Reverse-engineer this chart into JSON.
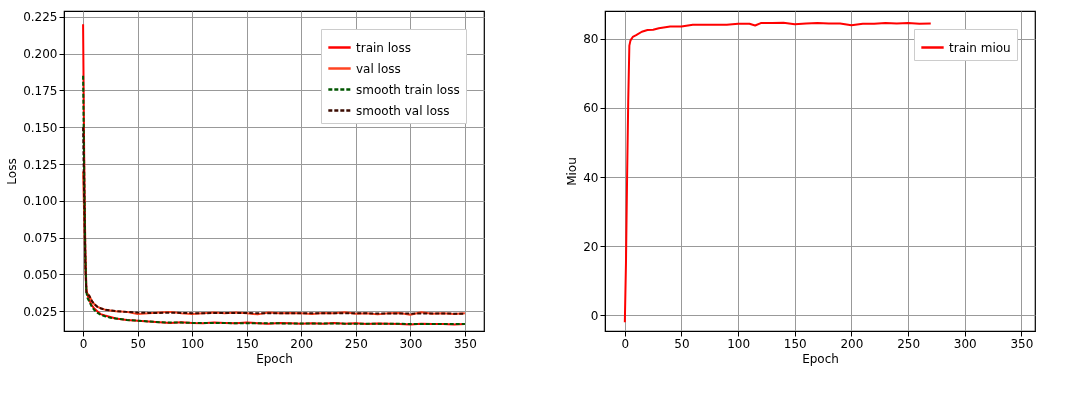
{
  "chart_data": [
    {
      "type": "line",
      "xlabel": "Epoch",
      "ylabel": "Loss",
      "grid": true,
      "legend": "top right",
      "xlim": [
        -17.5,
        367.5
      ],
      "xticks": [
        0,
        50,
        100,
        150,
        200,
        250,
        300,
        350
      ],
      "ylim": [
        0.0115,
        0.229
      ],
      "yticks": [
        0.025,
        {
          "value": 0.05,
          "label": "0.050"
        },
        0.075,
        {
          "value": 0.1,
          "label": "0.100"
        },
        0.125,
        {
          "value": 0.15,
          "label": "0.150"
        },
        0.175,
        {
          "value": 0.2,
          "label": "0.200"
        },
        0.225
      ],
      "x": [
        0,
        1,
        2,
        3,
        4,
        6,
        8,
        10,
        13,
        16,
        20,
        25,
        30,
        40,
        50,
        60,
        70,
        80,
        90,
        100,
        110,
        120,
        130,
        140,
        150,
        160,
        170,
        180,
        190,
        200,
        210,
        220,
        230,
        240,
        250,
        260,
        270,
        280,
        290,
        300,
        310,
        320,
        330,
        340,
        350
      ],
      "series": [
        {
          "name": "train loss",
          "color": "#ff0000",
          "line_style": "solid",
          "values": [
            0.22,
            0.13,
            0.07,
            0.04,
            0.036,
            0.032,
            0.029,
            0.027,
            0.025,
            0.023,
            0.022,
            0.021,
            0.02,
            0.019,
            0.0185,
            0.018,
            0.0175,
            0.017,
            0.0175,
            0.017,
            0.0168,
            0.0172,
            0.017,
            0.0168,
            0.0172,
            0.0168,
            0.0165,
            0.017,
            0.0168,
            0.0165,
            0.0168,
            0.0165,
            0.017,
            0.0165,
            0.0167,
            0.0163,
            0.0166,
            0.0165,
            0.0163,
            0.016,
            0.0165,
            0.0162,
            0.0163,
            0.016,
            0.0162
          ]
        },
        {
          "name": "val loss",
          "color": "#ff4422",
          "line_style": "solid",
          "values": [
            0.12,
            0.09,
            0.055,
            0.038,
            0.037,
            0.035,
            0.032,
            0.03,
            0.028,
            0.027,
            0.026,
            0.0255,
            0.025,
            0.0245,
            0.023,
            0.0235,
            0.024,
            0.0245,
            0.0235,
            0.023,
            0.0235,
            0.024,
            0.0235,
            0.024,
            0.0235,
            0.0228,
            0.024,
            0.0235,
            0.0238,
            0.0235,
            0.023,
            0.0238,
            0.0235,
            0.0242,
            0.0232,
            0.0235,
            0.0228,
            0.0235,
            0.0238,
            0.0225,
            0.0242,
            0.0232,
            0.0235,
            0.023,
            0.0235
          ]
        },
        {
          "name": "smooth train loss",
          "color": "#005500",
          "line_style": "dashed",
          "values": [
            0.185,
            0.12,
            0.065,
            0.038,
            0.034,
            0.031,
            0.028,
            0.026,
            0.024,
            0.0225,
            0.0215,
            0.0205,
            0.02,
            0.019,
            0.0185,
            0.018,
            0.0175,
            0.0172,
            0.0172,
            0.017,
            0.0169,
            0.0169,
            0.0169,
            0.0168,
            0.0168,
            0.0167,
            0.0167,
            0.0167,
            0.0166,
            0.0166,
            0.0166,
            0.0166,
            0.0166,
            0.0165,
            0.0165,
            0.0165,
            0.0165,
            0.0164,
            0.0164,
            0.0163,
            0.0163,
            0.0163,
            0.0162,
            0.0162,
            0.0162
          ]
        },
        {
          "name": "smooth val loss",
          "color": "#3a0a00",
          "line_style": "dashed",
          "values": [
            0.15,
            0.1,
            0.058,
            0.038,
            0.037,
            0.035,
            0.032,
            0.03,
            0.028,
            0.027,
            0.026,
            0.0255,
            0.025,
            0.0245,
            0.024,
            0.0238,
            0.0238,
            0.024,
            0.0238,
            0.0236,
            0.0236,
            0.0237,
            0.0237,
            0.0237,
            0.0237,
            0.0235,
            0.0236,
            0.0236,
            0.0236,
            0.0236,
            0.0235,
            0.0235,
            0.0235,
            0.0236,
            0.0235,
            0.0235,
            0.0234,
            0.0234,
            0.0234,
            0.0233,
            0.0234,
            0.0234,
            0.0234,
            0.0233,
            0.0233
          ]
        }
      ]
    },
    {
      "type": "line",
      "xlabel": "Epoch",
      "ylabel": "Miou",
      "grid": true,
      "legend": "top right",
      "xlim": [
        -17.5,
        362
      ],
      "xticks": [
        0,
        50,
        100,
        150,
        200,
        250,
        300,
        350
      ],
      "ylim": [
        -4.5,
        88
      ],
      "yticks": [
        0,
        20,
        40,
        60,
        80
      ],
      "x": [
        0,
        1,
        2,
        3,
        4,
        5,
        7,
        10,
        15,
        20,
        25,
        30,
        40,
        50,
        60,
        70,
        80,
        90,
        100,
        110,
        115,
        120,
        130,
        140,
        150,
        160,
        170,
        180,
        190,
        200,
        210,
        220,
        230,
        240,
        250,
        260,
        270
      ],
      "series": [
        {
          "name": "train miou",
          "color": "#ff0000",
          "line_style": "solid",
          "values": [
            -2,
            15,
            40,
            62,
            78,
            79.5,
            80.5,
            81,
            82,
            82.5,
            82.6,
            83,
            83.5,
            83.5,
            84,
            84,
            84,
            84,
            84.3,
            84.3,
            83.8,
            84.5,
            84.5,
            84.6,
            84.2,
            84.4,
            84.5,
            84.4,
            84.4,
            83.9,
            84.3,
            84.3,
            84.5,
            84.4,
            84.5,
            84.3,
            84.4
          ]
        }
      ]
    }
  ]
}
